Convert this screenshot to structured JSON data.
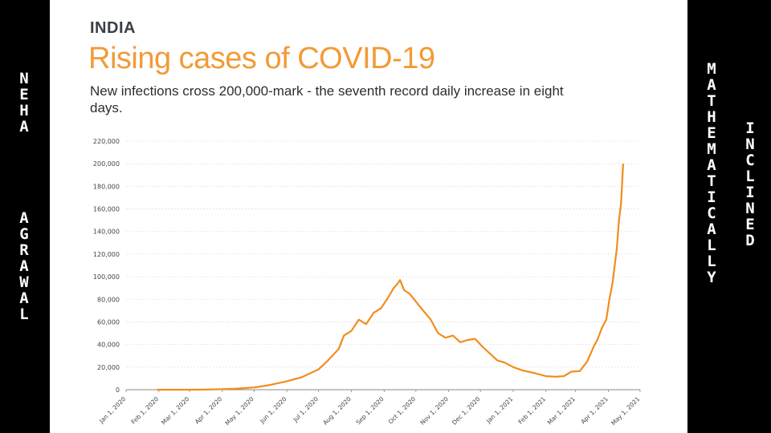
{
  "left_banner": {
    "line1": "NEHA",
    "line2": "AGRAWAL"
  },
  "right_banner": {
    "line1": "MATHEMATICALLY",
    "line2": "INCLINED"
  },
  "chart_data": {
    "type": "line",
    "country": "INDIA",
    "title": "Rising cases of COVID-19",
    "subtitle": "New infections cross 200,000-mark - the seventh record daily increase in eight days.",
    "xlabel": "",
    "ylabel": "",
    "ylim": [
      0,
      220000
    ],
    "yticks": [
      0,
      20000,
      40000,
      60000,
      80000,
      100000,
      120000,
      140000,
      160000,
      180000,
      200000,
      220000
    ],
    "ytick_labels": [
      "0",
      "20,000",
      "40,000",
      "60,000",
      "80,000",
      "100,000",
      "120,000",
      "140,000",
      "160,000",
      "180,000",
      "200,000",
      "220,000"
    ],
    "xtick_labels": [
      "Jan 1, 2020",
      "Feb 1, 2020",
      "Mar 1, 2020",
      "Apr 1, 2020",
      "May 1, 2020",
      "Jun 1, 2020",
      "Jul 1, 2020",
      "Aug 1, 2020",
      "Sep 1, 2020",
      "Oct 1, 2020",
      "Nov 1, 2020",
      "Dec 1, 2020",
      "Jan 1, 2021",
      "Feb 1, 2021",
      "Mar 1, 2021",
      "Apr 1, 2021",
      "May 1, 2021"
    ],
    "grid": true,
    "line_color": "#f28c1e",
    "series": [
      {
        "x": [
          "2020-01-30",
          "2020-03-01",
          "2020-03-15",
          "2020-04-01",
          "2020-04-15",
          "2020-05-01",
          "2020-05-15",
          "2020-06-01",
          "2020-06-15",
          "2020-07-01",
          "2020-07-10",
          "2020-07-20",
          "2020-07-25",
          "2020-08-01",
          "2020-08-08",
          "2020-08-15",
          "2020-08-22",
          "2020-08-29",
          "2020-09-05",
          "2020-09-10",
          "2020-09-13",
          "2020-09-16",
          "2020-09-20",
          "2020-09-25",
          "2020-10-01",
          "2020-10-08",
          "2020-10-15",
          "2020-10-22",
          "2020-10-29",
          "2020-11-05",
          "2020-11-12",
          "2020-11-19",
          "2020-11-26",
          "2020-12-03",
          "2020-12-10",
          "2020-12-17",
          "2020-12-24",
          "2021-01-01",
          "2021-01-10",
          "2021-01-20",
          "2021-02-01",
          "2021-02-10",
          "2021-02-18",
          "2021-02-25",
          "2021-03-05",
          "2021-03-12",
          "2021-03-18",
          "2021-03-22",
          "2021-03-26",
          "2021-03-30",
          "2021-04-02",
          "2021-04-05",
          "2021-04-07",
          "2021-04-09",
          "2021-04-11",
          "2021-04-13",
          "2021-04-15"
        ],
        "y": [
          0,
          0,
          100,
          400,
          1000,
          2000,
          4000,
          7500,
          11000,
          18000,
          26000,
          36000,
          48000,
          52000,
          62000,
          58000,
          68000,
          72000,
          82000,
          90000,
          93000,
          97000,
          88000,
          85000,
          78000,
          70000,
          62000,
          50000,
          46000,
          48000,
          42000,
          44000,
          45000,
          38000,
          32000,
          26000,
          24000,
          20000,
          17000,
          15000,
          12000,
          11500,
          12000,
          16000,
          16500,
          25000,
          38000,
          45000,
          55000,
          62000,
          80000,
          95000,
          110000,
          125000,
          150000,
          165000,
          200000
        ]
      }
    ]
  }
}
